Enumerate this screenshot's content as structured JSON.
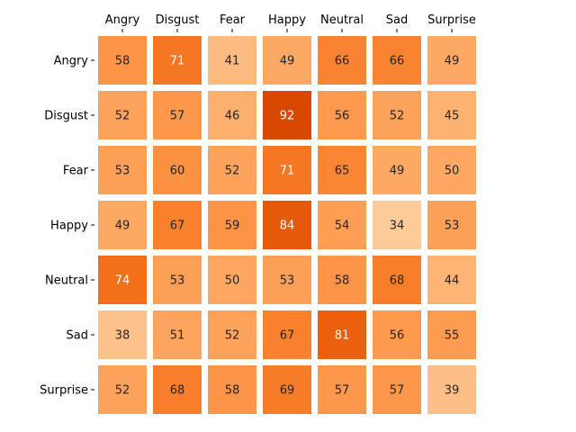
{
  "chart_data": {
    "type": "heatmap",
    "title": "",
    "xlabel": "",
    "ylabel": "",
    "x_categories": [
      "Angry",
      "Disgust",
      "Fear",
      "Happy",
      "Neutral",
      "Sad",
      "Surprise"
    ],
    "y_categories": [
      "Angry",
      "Disgust",
      "Fear",
      "Happy",
      "Neutral",
      "Sad",
      "Surprise"
    ],
    "x_tick_position": "top",
    "colormap": "Oranges",
    "value_range": [
      34,
      92
    ],
    "values": [
      [
        58,
        71,
        41,
        49,
        66,
        66,
        49
      ],
      [
        52,
        57,
        46,
        92,
        56,
        52,
        45
      ],
      [
        53,
        60,
        52,
        71,
        65,
        49,
        50
      ],
      [
        49,
        67,
        59,
        84,
        54,
        34,
        53
      ],
      [
        74,
        53,
        50,
        53,
        58,
        68,
        44
      ],
      [
        38,
        51,
        52,
        67,
        81,
        56,
        55
      ],
      [
        52,
        68,
        58,
        69,
        57,
        57,
        39
      ]
    ],
    "grid": false,
    "legend": "none"
  }
}
